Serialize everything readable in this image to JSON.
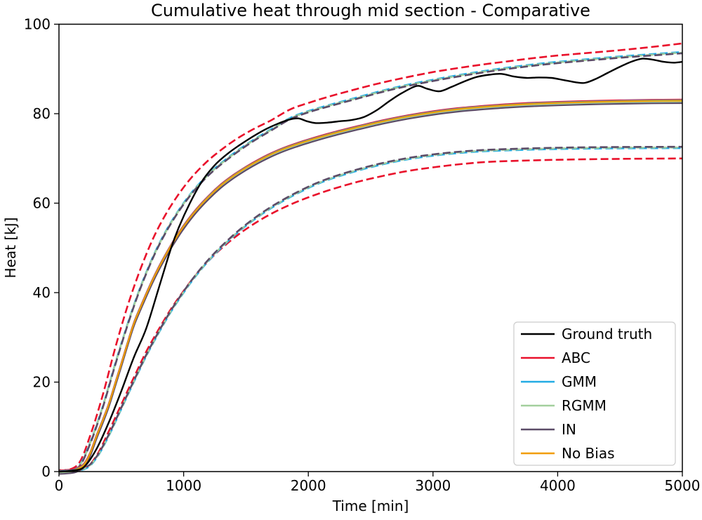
{
  "figure": {
    "title": "Cumulative heat through mid section - Comparative",
    "xlabel": "Time [min]",
    "ylabel": "Heat [kJ]"
  },
  "chart_data": {
    "type": "line",
    "title": "Cumulative heat through mid section - Comparative",
    "xlabel": "Time [min]",
    "ylabel": "Heat [kJ]",
    "xlim": [
      0,
      5000
    ],
    "ylim": [
      0,
      100
    ],
    "xticks": [
      0,
      1000,
      2000,
      3000,
      4000,
      5000
    ],
    "yticks": [
      0,
      20,
      40,
      60,
      80,
      100
    ],
    "grid": false,
    "background": "#ffffff",
    "legend": {
      "position": "lower right",
      "entries": [
        {
          "label": "Ground truth",
          "color": "#000000"
        },
        {
          "label": "ABC",
          "color": "#e9112b"
        },
        {
          "label": "GMM",
          "color": "#23ace4"
        },
        {
          "label": "RGMM",
          "color": "#a3cf9d"
        },
        {
          "label": "IN",
          "color": "#5c4c68"
        },
        {
          "label": "No Bias",
          "color": "#f19d01"
        }
      ]
    },
    "pools": {
      "mean_base": [
        [
          0,
          0
        ],
        [
          100,
          0.2
        ],
        [
          150,
          0.6
        ],
        [
          200,
          1.5
        ],
        [
          250,
          4
        ],
        [
          300,
          7.8
        ],
        [
          350,
          11.3
        ],
        [
          400,
          15
        ],
        [
          450,
          19.5
        ],
        [
          500,
          24
        ],
        [
          550,
          28.6
        ],
        [
          600,
          33
        ],
        [
          650,
          36.4
        ],
        [
          700,
          39.6
        ],
        [
          750,
          42.7
        ],
        [
          800,
          45.5
        ],
        [
          850,
          48.1
        ],
        [
          900,
          50.5
        ],
        [
          950,
          52.7
        ],
        [
          1000,
          54.8
        ],
        [
          1100,
          58.4
        ],
        [
          1200,
          61.4
        ],
        [
          1300,
          64
        ],
        [
          1400,
          66.1
        ],
        [
          1500,
          67.9
        ],
        [
          1600,
          69.5
        ],
        [
          1700,
          70.9
        ],
        [
          1800,
          72.1
        ],
        [
          1900,
          73.1
        ],
        [
          2000,
          74
        ],
        [
          2200,
          75.6
        ],
        [
          2400,
          77
        ],
        [
          2600,
          78.3
        ],
        [
          2800,
          79.4
        ],
        [
          3000,
          80.3
        ],
        [
          3200,
          81
        ],
        [
          3400,
          81.5
        ],
        [
          3600,
          81.9
        ],
        [
          3800,
          82.2
        ],
        [
          4000,
          82.4
        ],
        [
          4250,
          82.6
        ],
        [
          4500,
          82.75
        ],
        [
          4750,
          82.85
        ],
        [
          5000,
          82.9
        ]
      ],
      "gt": [
        [
          0,
          0
        ],
        [
          100,
          0.2
        ],
        [
          200,
          1
        ],
        [
          300,
          5
        ],
        [
          400,
          11
        ],
        [
          500,
          18
        ],
        [
          600,
          25.5
        ],
        [
          700,
          32
        ],
        [
          800,
          41
        ],
        [
          900,
          50
        ],
        [
          960,
          54.5
        ],
        [
          1050,
          60
        ],
        [
          1150,
          65
        ],
        [
          1250,
          68.5
        ],
        [
          1350,
          71
        ],
        [
          1450,
          73
        ],
        [
          1550,
          74.8
        ],
        [
          1650,
          76.4
        ],
        [
          1750,
          77.7
        ],
        [
          1850,
          78.7
        ],
        [
          1920,
          78.95
        ],
        [
          1990,
          78.3
        ],
        [
          2060,
          77.9
        ],
        [
          2150,
          78
        ],
        [
          2250,
          78.3
        ],
        [
          2350,
          78.6
        ],
        [
          2450,
          79.3
        ],
        [
          2550,
          80.8
        ],
        [
          2650,
          82.8
        ],
        [
          2750,
          84.6
        ],
        [
          2870,
          86.2
        ],
        [
          2950,
          85.6
        ],
        [
          3050,
          85
        ],
        [
          3150,
          86
        ],
        [
          3250,
          87.2
        ],
        [
          3350,
          88.2
        ],
        [
          3450,
          88.7
        ],
        [
          3550,
          88.9
        ],
        [
          3650,
          88.3
        ],
        [
          3750,
          88
        ],
        [
          3850,
          88.1
        ],
        [
          3950,
          88
        ],
        [
          4050,
          87.5
        ],
        [
          4150,
          87
        ],
        [
          4220,
          86.9
        ],
        [
          4300,
          87.7
        ],
        [
          4400,
          89.1
        ],
        [
          4500,
          90.5
        ],
        [
          4600,
          91.7
        ],
        [
          4680,
          92.3
        ],
        [
          4760,
          92.1
        ],
        [
          4850,
          91.6
        ],
        [
          4930,
          91.4
        ],
        [
          5000,
          91.6
        ]
      ],
      "gmm_upper": [
        [
          0,
          0
        ],
        [
          150,
          1
        ],
        [
          250,
          6.5
        ],
        [
          350,
          14.5
        ],
        [
          450,
          24
        ],
        [
          550,
          33
        ],
        [
          650,
          41
        ],
        [
          750,
          47.8
        ],
        [
          850,
          53.4
        ],
        [
          950,
          58
        ],
        [
          1050,
          61.9
        ],
        [
          1150,
          65.1
        ],
        [
          1250,
          67.8
        ],
        [
          1400,
          71.1
        ],
        [
          1550,
          74
        ],
        [
          1700,
          76.5
        ],
        [
          1850,
          79
        ],
        [
          2000,
          80.6
        ],
        [
          2200,
          82.2
        ],
        [
          2400,
          83.7
        ],
        [
          2600,
          85.2
        ],
        [
          2800,
          86.5
        ],
        [
          3000,
          87.6
        ],
        [
          3200,
          88.6
        ],
        [
          3400,
          89.5
        ],
        [
          3600,
          90.3
        ],
        [
          3800,
          91
        ],
        [
          4000,
          91.6
        ],
        [
          4250,
          92.2
        ],
        [
          4500,
          92.8
        ],
        [
          4750,
          93.3
        ],
        [
          5000,
          93.8
        ]
      ],
      "abc_upper": [
        [
          0,
          0
        ],
        [
          150,
          1.5
        ],
        [
          250,
          8
        ],
        [
          350,
          17
        ],
        [
          450,
          27.5
        ],
        [
          550,
          37
        ],
        [
          650,
          45
        ],
        [
          750,
          51.8
        ],
        [
          850,
          57.2
        ],
        [
          950,
          61.6
        ],
        [
          1050,
          65.3
        ],
        [
          1150,
          68.3
        ],
        [
          1250,
          70.8
        ],
        [
          1400,
          73.9
        ],
        [
          1550,
          76.4
        ],
        [
          1700,
          78.5
        ],
        [
          1850,
          80.9
        ],
        [
          2000,
          82.4
        ],
        [
          2200,
          84.1
        ],
        [
          2400,
          85.6
        ],
        [
          2600,
          87
        ],
        [
          2800,
          88.2
        ],
        [
          3000,
          89.3
        ],
        [
          3200,
          90.2
        ],
        [
          3400,
          91
        ],
        [
          3600,
          91.7
        ],
        [
          3800,
          92.4
        ],
        [
          4000,
          93
        ],
        [
          4250,
          93.6
        ],
        [
          4500,
          94.2
        ],
        [
          4750,
          94.9
        ],
        [
          5000,
          95.7
        ]
      ],
      "gmm_lower": [
        [
          0,
          0
        ],
        [
          200,
          0.5
        ],
        [
          300,
          3
        ],
        [
          400,
          8
        ],
        [
          500,
          14
        ],
        [
          600,
          20
        ],
        [
          700,
          25.8
        ],
        [
          800,
          31
        ],
        [
          900,
          35.8
        ],
        [
          1000,
          40
        ],
        [
          1100,
          43.8
        ],
        [
          1200,
          47.1
        ],
        [
          1300,
          50
        ],
        [
          1450,
          53.8
        ],
        [
          1600,
          57
        ],
        [
          1750,
          59.7
        ],
        [
          1900,
          62
        ],
        [
          2050,
          64
        ],
        [
          2200,
          65.6
        ],
        [
          2400,
          67.3
        ],
        [
          2600,
          68.7
        ],
        [
          2800,
          69.8
        ],
        [
          3000,
          70.6
        ],
        [
          3250,
          71.3
        ],
        [
          3500,
          71.7
        ],
        [
          4000,
          72.1
        ],
        [
          4500,
          72.25
        ],
        [
          5000,
          72.3
        ]
      ],
      "abc_lower": [
        [
          0,
          0
        ],
        [
          200,
          0.7
        ],
        [
          300,
          3.5
        ],
        [
          400,
          9
        ],
        [
          500,
          15
        ],
        [
          600,
          21
        ],
        [
          700,
          26.8
        ],
        [
          800,
          31.8
        ],
        [
          900,
          36.4
        ],
        [
          1000,
          40.4
        ],
        [
          1100,
          44
        ],
        [
          1200,
          47.1
        ],
        [
          1300,
          49.8
        ],
        [
          1450,
          53.2
        ],
        [
          1600,
          56
        ],
        [
          1750,
          58.3
        ],
        [
          1900,
          60.2
        ],
        [
          2050,
          61.8
        ],
        [
          2200,
          63.2
        ],
        [
          2400,
          64.8
        ],
        [
          2600,
          66.1
        ],
        [
          2800,
          67.2
        ],
        [
          3000,
          68
        ],
        [
          3250,
          68.8
        ],
        [
          3500,
          69.3
        ],
        [
          4000,
          69.7
        ],
        [
          4500,
          69.9
        ],
        [
          5000,
          70
        ]
      ]
    },
    "series": [
      {
        "key": "abc-upper-bound",
        "model": "ABC",
        "pool": "abc_upper",
        "offset": 0,
        "color": "#e9112b",
        "style": "dashed",
        "width": 2.6,
        "phase": 0
      },
      {
        "key": "abc-lower-bound",
        "model": "ABC",
        "pool": "abc_lower",
        "offset": 0,
        "color": "#e9112b",
        "style": "dashed",
        "width": 2.6,
        "phase": 0
      },
      {
        "key": "gmm-upper-bound",
        "model": "GMM",
        "pool": "gmm_upper",
        "offset": 0,
        "color": "#23ace4",
        "style": "dashed",
        "width": 2.6,
        "phase": 0
      },
      {
        "key": "gmm-lower-bound",
        "model": "GMM",
        "pool": "gmm_lower",
        "offset": 0,
        "color": "#23ace4",
        "style": "dashed",
        "width": 2.6,
        "phase": 0
      },
      {
        "key": "rgmm-upper-bound",
        "model": "RGMM",
        "pool": "gmm_upper",
        "offset": -0.15,
        "color": "#a3cf9d",
        "style": "dashed",
        "width": 2.6,
        "phase": 4
      },
      {
        "key": "rgmm-lower-bound",
        "model": "RGMM",
        "pool": "gmm_lower",
        "offset": 0.15,
        "color": "#a3cf9d",
        "style": "dashed",
        "width": 2.6,
        "phase": 4
      },
      {
        "key": "in-upper-bound",
        "model": "IN",
        "pool": "gmm_upper",
        "offset": -0.3,
        "color": "#5c4c68",
        "style": "dashed",
        "width": 2.6,
        "phase": 8
      },
      {
        "key": "in-lower-bound",
        "model": "IN",
        "pool": "gmm_lower",
        "offset": 0.3,
        "color": "#5c4c68",
        "style": "dashed",
        "width": 2.6,
        "phase": 8
      },
      {
        "key": "abc-mean",
        "model": "ABC",
        "pool": "mean_base",
        "offset": 0.25,
        "color": "#e9112b",
        "style": "solid",
        "width": 2.2
      },
      {
        "key": "gmm-mean",
        "model": "GMM",
        "pool": "mean_base",
        "offset": 0.1,
        "color": "#23ace4",
        "style": "solid",
        "width": 2.2
      },
      {
        "key": "rgmm-mean",
        "model": "RGMM",
        "pool": "mean_base",
        "offset": -0.25,
        "color": "#a3cf9d",
        "style": "solid",
        "width": 2.2
      },
      {
        "key": "in-mean",
        "model": "IN",
        "pool": "mean_base",
        "offset": -0.55,
        "color": "#5c4c68",
        "style": "solid",
        "width": 2.2
      },
      {
        "key": "nobias-mean",
        "model": "No Bias",
        "pool": "mean_base",
        "offset": 0,
        "color": "#f19d01",
        "style": "solid",
        "width": 2.2
      },
      {
        "key": "ground-truth",
        "model": "Ground truth",
        "pool": "gt",
        "offset": 0,
        "color": "#000000",
        "style": "solid",
        "width": 2.4
      }
    ]
  }
}
